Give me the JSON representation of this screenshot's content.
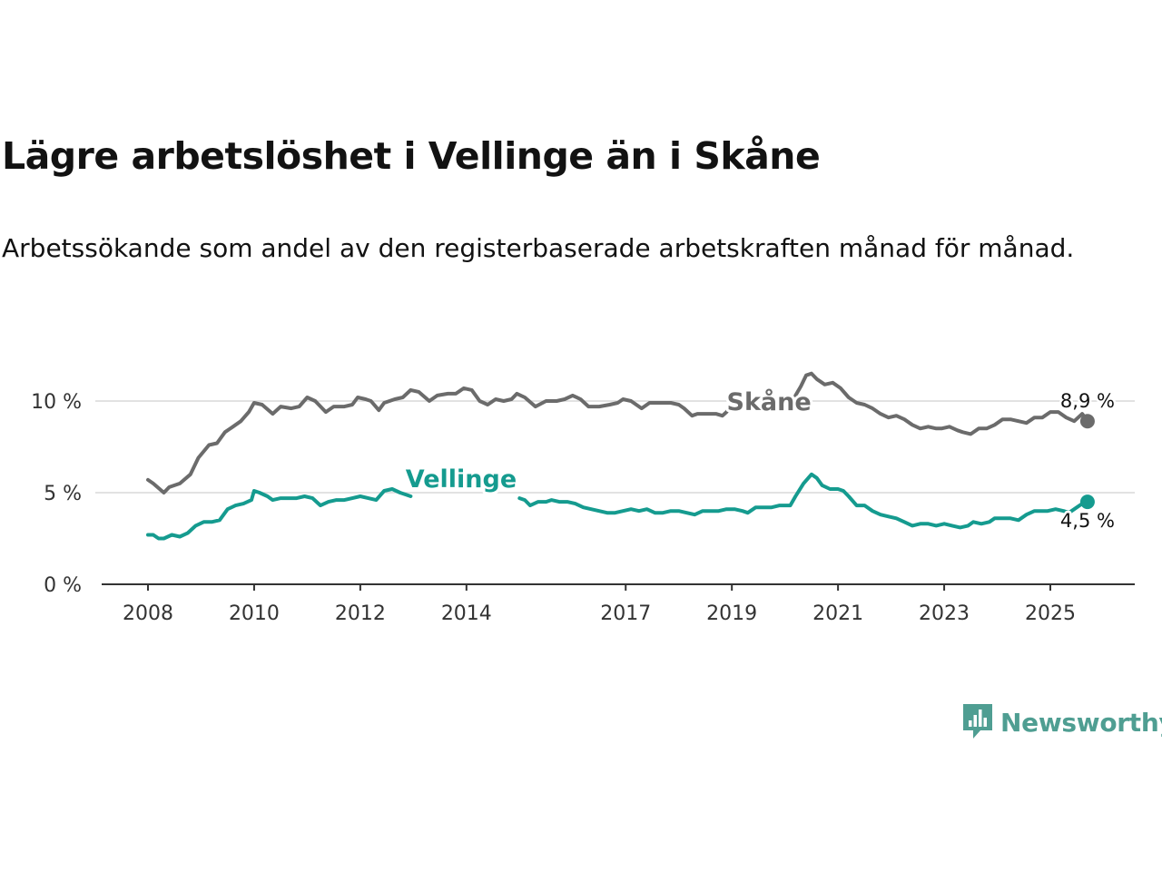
{
  "title": "Lägre arbetslöshet i Vellinge än i Skåne",
  "subtitle": "Arbetssökande som andel av den registerbaserade arbetskraften månad för månad.",
  "brand": {
    "name": "Newsworthy",
    "color": "#4f9e92",
    "icon": "bar-chart-bubble-icon"
  },
  "chart_data": {
    "type": "line",
    "title": "Lägre arbetslöshet i Vellinge än i Skåne",
    "xlabel": "",
    "ylabel": "",
    "ylim": [
      0,
      12
    ],
    "xlim": [
      2007.9,
      2026.1
    ],
    "yticks": [
      0,
      5,
      10
    ],
    "ytick_labels": [
      "0 %",
      "5 %",
      "10 %"
    ],
    "xticks": [
      2008,
      2010,
      2012,
      2014,
      2017,
      2019,
      2021,
      2023,
      2025
    ],
    "xtick_labels": [
      "2008",
      "2010",
      "2012",
      "2014",
      "2017",
      "2019",
      "2021",
      "2023",
      "2025"
    ],
    "grid": "horizontal",
    "series": [
      {
        "name": "Skåne",
        "color": "#6b6b6b",
        "end_label": "8,9 %",
        "points": [
          [
            2008.0,
            5.7
          ],
          [
            2008.1,
            5.5
          ],
          [
            2008.3,
            5.0
          ],
          [
            2008.4,
            5.3
          ],
          [
            2008.6,
            5.5
          ],
          [
            2008.8,
            6.0
          ],
          [
            2008.95,
            6.9
          ],
          [
            2009.15,
            7.6
          ],
          [
            2009.3,
            7.7
          ],
          [
            2009.45,
            8.3
          ],
          [
            2009.6,
            8.6
          ],
          [
            2009.75,
            8.9
          ],
          [
            2009.9,
            9.4
          ],
          [
            2010.0,
            9.9
          ],
          [
            2010.15,
            9.8
          ],
          [
            2010.35,
            9.3
          ],
          [
            2010.5,
            9.7
          ],
          [
            2010.7,
            9.6
          ],
          [
            2010.85,
            9.7
          ],
          [
            2011.0,
            10.2
          ],
          [
            2011.15,
            10.0
          ],
          [
            2011.35,
            9.4
          ],
          [
            2011.5,
            9.7
          ],
          [
            2011.7,
            9.7
          ],
          [
            2011.85,
            9.8
          ],
          [
            2011.95,
            10.2
          ],
          [
            2012.1,
            10.1
          ],
          [
            2012.2,
            10.0
          ],
          [
            2012.35,
            9.5
          ],
          [
            2012.45,
            9.9
          ],
          [
            2012.65,
            10.1
          ],
          [
            2012.8,
            10.2
          ],
          [
            2012.95,
            10.6
          ],
          [
            2013.1,
            10.5
          ],
          [
            2013.3,
            10.0
          ],
          [
            2013.45,
            10.3
          ],
          [
            2013.65,
            10.4
          ],
          [
            2013.8,
            10.4
          ],
          [
            2013.95,
            10.7
          ],
          [
            2014.1,
            10.6
          ],
          [
            2014.25,
            10.0
          ],
          [
            2014.4,
            9.8
          ],
          [
            2014.55,
            10.1
          ],
          [
            2014.7,
            10.0
          ],
          [
            2014.85,
            10.1
          ],
          [
            2014.95,
            10.4
          ],
          [
            2015.1,
            10.2
          ],
          [
            2015.3,
            9.7
          ],
          [
            2015.5,
            10.0
          ],
          [
            2015.7,
            10.0
          ],
          [
            2015.85,
            10.1
          ],
          [
            2016.0,
            10.3
          ],
          [
            2016.15,
            10.1
          ],
          [
            2016.3,
            9.7
          ],
          [
            2016.5,
            9.7
          ],
          [
            2016.7,
            9.8
          ],
          [
            2016.85,
            9.9
          ],
          [
            2016.95,
            10.1
          ],
          [
            2017.1,
            10.0
          ],
          [
            2017.3,
            9.6
          ],
          [
            2017.45,
            9.9
          ],
          [
            2017.65,
            9.9
          ],
          [
            2017.85,
            9.9
          ],
          [
            2018.0,
            9.8
          ],
          [
            2018.1,
            9.6
          ],
          [
            2018.25,
            9.2
          ],
          [
            2018.35,
            9.3
          ],
          [
            2018.55,
            9.3
          ],
          [
            2018.7,
            9.3
          ],
          [
            2018.82,
            9.2
          ],
          [
            2018.9,
            9.4
          ],
          [
            2018.95,
            9.6
          ],
          null,
          [
            2020.2,
            10.3
          ],
          [
            2020.3,
            10.8
          ],
          [
            2020.4,
            11.4
          ],
          [
            2020.5,
            11.5
          ],
          [
            2020.6,
            11.2
          ],
          [
            2020.75,
            10.9
          ],
          [
            2020.9,
            11.0
          ],
          [
            2021.05,
            10.7
          ],
          [
            2021.2,
            10.2
          ],
          [
            2021.35,
            9.9
          ],
          [
            2021.5,
            9.8
          ],
          [
            2021.65,
            9.6
          ],
          [
            2021.8,
            9.3
          ],
          [
            2021.95,
            9.1
          ],
          [
            2022.1,
            9.2
          ],
          [
            2022.25,
            9.0
          ],
          [
            2022.4,
            8.7
          ],
          [
            2022.55,
            8.5
          ],
          [
            2022.7,
            8.6
          ],
          [
            2022.85,
            8.5
          ],
          [
            2022.95,
            8.5
          ],
          [
            2023.1,
            8.6
          ],
          [
            2023.25,
            8.4
          ],
          [
            2023.35,
            8.3
          ],
          [
            2023.5,
            8.2
          ],
          [
            2023.65,
            8.5
          ],
          [
            2023.8,
            8.5
          ],
          [
            2023.95,
            8.7
          ],
          [
            2024.1,
            9.0
          ],
          [
            2024.25,
            9.0
          ],
          [
            2024.4,
            8.9
          ],
          [
            2024.55,
            8.8
          ],
          [
            2024.7,
            9.1
          ],
          [
            2024.85,
            9.1
          ],
          [
            2025.0,
            9.4
          ],
          [
            2025.15,
            9.4
          ],
          [
            2025.3,
            9.1
          ],
          [
            2025.45,
            8.9
          ],
          [
            2025.6,
            9.3
          ],
          [
            2025.7,
            8.9
          ]
        ]
      },
      {
        "name": "Vellinge",
        "color": "#159b8f",
        "end_label": "4,5 %",
        "points": [
          [
            2008.0,
            2.7
          ],
          [
            2008.1,
            2.7
          ],
          [
            2008.2,
            2.5
          ],
          [
            2008.3,
            2.5
          ],
          [
            2008.45,
            2.7
          ],
          [
            2008.6,
            2.6
          ],
          [
            2008.75,
            2.8
          ],
          [
            2008.9,
            3.2
          ],
          [
            2009.05,
            3.4
          ],
          [
            2009.2,
            3.4
          ],
          [
            2009.35,
            3.5
          ],
          [
            2009.5,
            4.1
          ],
          [
            2009.65,
            4.3
          ],
          [
            2009.8,
            4.4
          ],
          [
            2009.95,
            4.6
          ],
          [
            2010.0,
            5.1
          ],
          [
            2010.1,
            5.0
          ],
          [
            2010.25,
            4.8
          ],
          [
            2010.35,
            4.6
          ],
          [
            2010.5,
            4.7
          ],
          [
            2010.65,
            4.7
          ],
          [
            2010.8,
            4.7
          ],
          [
            2010.95,
            4.8
          ],
          [
            2011.1,
            4.7
          ],
          [
            2011.25,
            4.3
          ],
          [
            2011.4,
            4.5
          ],
          [
            2011.55,
            4.6
          ],
          [
            2011.7,
            4.6
          ],
          [
            2011.85,
            4.7
          ],
          [
            2012.0,
            4.8
          ],
          [
            2012.15,
            4.7
          ],
          [
            2012.3,
            4.6
          ],
          [
            2012.45,
            5.1
          ],
          [
            2012.6,
            5.2
          ],
          [
            2012.75,
            5.0
          ],
          [
            2012.85,
            4.9
          ],
          [
            2012.95,
            4.8
          ],
          null,
          [
            2015.0,
            4.7
          ],
          [
            2015.1,
            4.6
          ],
          [
            2015.2,
            4.3
          ],
          [
            2015.35,
            4.5
          ],
          [
            2015.5,
            4.5
          ],
          [
            2015.6,
            4.6
          ],
          [
            2015.75,
            4.5
          ],
          [
            2015.9,
            4.5
          ],
          [
            2016.05,
            4.4
          ],
          [
            2016.2,
            4.2
          ],
          [
            2016.35,
            4.1
          ],
          [
            2016.5,
            4.0
          ],
          [
            2016.65,
            3.9
          ],
          [
            2016.8,
            3.9
          ],
          [
            2016.95,
            4.0
          ],
          [
            2017.1,
            4.1
          ],
          [
            2017.25,
            4.0
          ],
          [
            2017.4,
            4.1
          ],
          [
            2017.55,
            3.9
          ],
          [
            2017.7,
            3.9
          ],
          [
            2017.85,
            4.0
          ],
          [
            2018.0,
            4.0
          ],
          [
            2018.15,
            3.9
          ],
          [
            2018.3,
            3.8
          ],
          [
            2018.45,
            4.0
          ],
          [
            2018.6,
            4.0
          ],
          [
            2018.75,
            4.0
          ],
          [
            2018.9,
            4.1
          ],
          [
            2019.05,
            4.1
          ],
          [
            2019.2,
            4.0
          ],
          [
            2019.3,
            3.9
          ],
          [
            2019.45,
            4.2
          ],
          [
            2019.6,
            4.2
          ],
          [
            2019.75,
            4.2
          ],
          [
            2019.9,
            4.3
          ],
          [
            2020.0,
            4.3
          ],
          [
            2020.1,
            4.3
          ],
          [
            2020.2,
            4.8
          ],
          [
            2020.35,
            5.5
          ],
          [
            2020.5,
            6.0
          ],
          [
            2020.6,
            5.8
          ],
          [
            2020.7,
            5.4
          ],
          [
            2020.85,
            5.2
          ],
          [
            2021.0,
            5.2
          ],
          [
            2021.1,
            5.1
          ],
          [
            2021.2,
            4.8
          ],
          [
            2021.35,
            4.3
          ],
          [
            2021.5,
            4.3
          ],
          [
            2021.65,
            4.0
          ],
          [
            2021.8,
            3.8
          ],
          [
            2021.95,
            3.7
          ],
          [
            2022.1,
            3.6
          ],
          [
            2022.25,
            3.4
          ],
          [
            2022.4,
            3.2
          ],
          [
            2022.55,
            3.3
          ],
          [
            2022.7,
            3.3
          ],
          [
            2022.85,
            3.2
          ],
          [
            2023.0,
            3.3
          ],
          [
            2023.15,
            3.2
          ],
          [
            2023.3,
            3.1
          ],
          [
            2023.45,
            3.2
          ],
          [
            2023.55,
            3.4
          ],
          [
            2023.7,
            3.3
          ],
          [
            2023.85,
            3.4
          ],
          [
            2023.95,
            3.6
          ],
          [
            2024.1,
            3.6
          ],
          [
            2024.25,
            3.6
          ],
          [
            2024.4,
            3.5
          ],
          [
            2024.55,
            3.8
          ],
          [
            2024.7,
            4.0
          ],
          [
            2024.85,
            4.0
          ],
          [
            2024.95,
            4.0
          ],
          [
            2025.1,
            4.1
          ],
          [
            2025.25,
            4.0
          ],
          [
            2025.35,
            3.9
          ],
          [
            2025.5,
            4.2
          ],
          [
            2025.6,
            4.4
          ],
          [
            2025.7,
            4.5
          ]
        ]
      }
    ],
    "series_labels": [
      {
        "series": "Skåne",
        "text": "Skåne",
        "x": 2019.7,
        "y": 9.5
      },
      {
        "series": "Vellinge",
        "text": "Vellinge",
        "x": 2013.9,
        "y": 5.3
      }
    ]
  }
}
